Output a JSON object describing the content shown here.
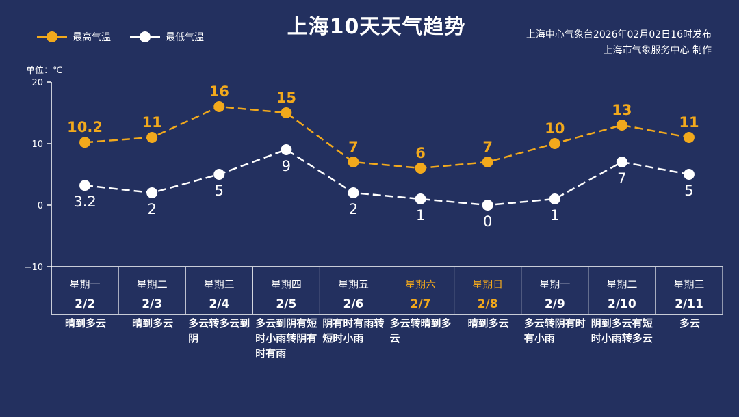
{
  "title": "上海10天天气趋势",
  "legend": {
    "high": "最高气温",
    "low": "最低气温"
  },
  "source": {
    "line1": "上海中心气象台2026年02月02日16时发布",
    "line2": "上海市气象服务中心  制作"
  },
  "unit": "单位：℃",
  "colors": {
    "background": "#23305f",
    "high": "#f2a91c",
    "low": "#ffffff",
    "weekend": "#f2a91c"
  },
  "chart_data": {
    "type": "line",
    "title": "上海10天天气趋势",
    "ylabel": "单位：℃",
    "ylim": [
      -10,
      20
    ],
    "yticks": [
      -10,
      0,
      10,
      20
    ],
    "legend_position": "top-left",
    "categories": [
      "星期一 2/2",
      "星期二 2/3",
      "星期三 2/4",
      "星期四 2/5",
      "星期五 2/6",
      "星期六 2/7",
      "星期日 2/8",
      "星期一 2/9",
      "星期二 2/10",
      "星期三 2/11"
    ],
    "weekdays": [
      "星期一",
      "星期二",
      "星期三",
      "星期四",
      "星期五",
      "星期六",
      "星期日",
      "星期一",
      "星期二",
      "星期三"
    ],
    "dates": [
      "2/2",
      "2/3",
      "2/4",
      "2/5",
      "2/6",
      "2/7",
      "2/8",
      "2/9",
      "2/10",
      "2/11"
    ],
    "weekend": [
      false,
      false,
      false,
      false,
      false,
      true,
      true,
      false,
      false,
      false
    ],
    "series": [
      {
        "name": "最高气温",
        "values": [
          10.2,
          11,
          16,
          15,
          7,
          6,
          7,
          10,
          13,
          11
        ]
      },
      {
        "name": "最低气温",
        "values": [
          3.2,
          2,
          5,
          9,
          2,
          1,
          0,
          1,
          7,
          5
        ]
      }
    ],
    "descriptions": [
      "晴到多云",
      "晴到多云",
      "多云转多云到阴",
      "多云到阴有短时小雨转阴有时有雨",
      "阴有时有雨转短时小雨",
      "多云转晴到多云",
      "晴到多云",
      "多云转阴有时有小雨",
      "阴到多云有短时小雨转多云",
      "多云"
    ]
  }
}
